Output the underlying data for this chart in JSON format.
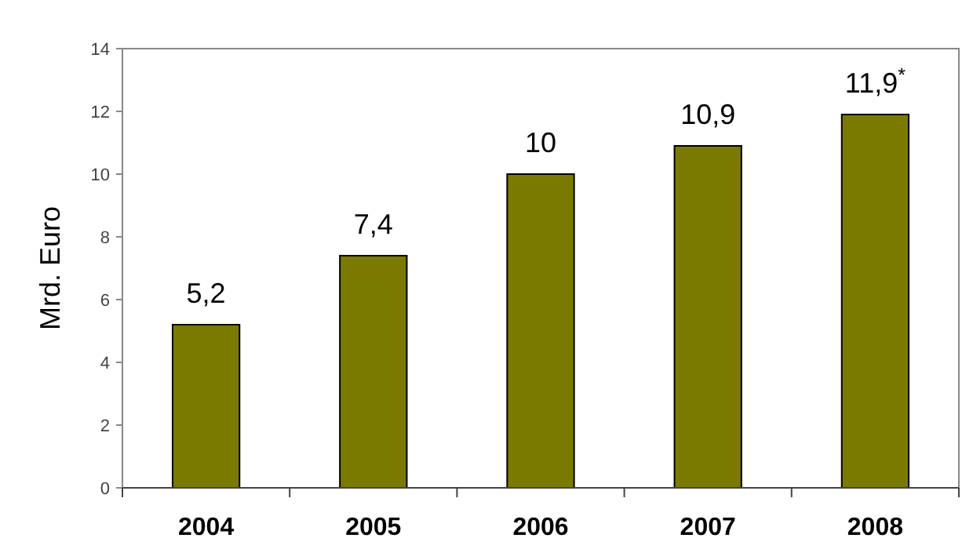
{
  "chart_data": {
    "type": "bar",
    "ylabel": "Mrd. Euro",
    "categories": [
      "2004",
      "2005",
      "2006",
      "2007",
      "2008"
    ],
    "values": [
      5.2,
      7.4,
      10,
      10.9,
      11.9
    ],
    "color": "#7a7a00",
    "value_labels": [
      "5,2",
      "7,4",
      "10",
      "10,9",
      "11,9$^{*}$"
    ],
    "ylim": [
      0,
      14
    ],
    "yticks": [
      0,
      2,
      4,
      6,
      8,
      10,
      12,
      14
    ]
  }
}
